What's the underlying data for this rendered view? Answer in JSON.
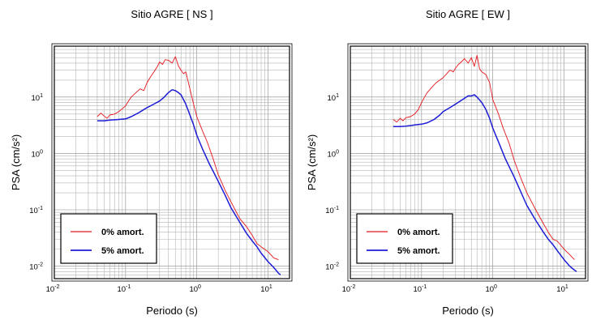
{
  "chart_data": [
    {
      "type": "line",
      "title": "Sitio AGRE [ NS ]",
      "xlabel": "Periodo (s)",
      "ylabel": "PSA (cm/s²)",
      "x_scale": "log",
      "y_scale": "log",
      "xlim": [
        0.01,
        20
      ],
      "ylim": [
        0.006,
        80
      ],
      "grid": true,
      "legend_position": "bottom-left",
      "x_ticks": [
        {
          "base": "10",
          "exp": "-2"
        },
        {
          "base": "10",
          "exp": "-1"
        },
        {
          "base": "10",
          "exp": "0"
        },
        {
          "base": "10",
          "exp": "1"
        }
      ],
      "y_ticks": [
        {
          "base": "10",
          "exp": "-2"
        },
        {
          "base": "10",
          "exp": "-1"
        },
        {
          "base": "10",
          "exp": "0"
        },
        {
          "base": "10",
          "exp": "1"
        }
      ],
      "series": [
        {
          "name": "0% amort.",
          "color": "#e8161c",
          "x": [
            0.04,
            0.045,
            0.05,
            0.055,
            0.06,
            0.07,
            0.08,
            0.09,
            0.1,
            0.11,
            0.12,
            0.14,
            0.16,
            0.18,
            0.2,
            0.22,
            0.25,
            0.28,
            0.3,
            0.33,
            0.36,
            0.4,
            0.45,
            0.5,
            0.55,
            0.6,
            0.65,
            0.7,
            0.8,
            0.9,
            1.0,
            1.2,
            1.4,
            1.7,
            2.0,
            2.5,
            3.0,
            4.0,
            5.0,
            6.0,
            7.0,
            8.0,
            10.0,
            12.0,
            14.0
          ],
          "values": [
            4.5,
            5.2,
            4.6,
            4.2,
            4.8,
            5.0,
            5.5,
            6.2,
            7.0,
            8.5,
            10.0,
            12.0,
            14.0,
            13.0,
            18.0,
            22.0,
            28.0,
            35.0,
            42.0,
            38.0,
            46.0,
            45.0,
            40.0,
            52.0,
            36.0,
            30.0,
            26.0,
            28.0,
            14.0,
            7.5,
            4.5,
            2.5,
            1.6,
            0.8,
            0.42,
            0.22,
            0.14,
            0.07,
            0.05,
            0.035,
            0.025,
            0.022,
            0.018,
            0.014,
            0.013
          ]
        },
        {
          "name": "5% amort.",
          "color": "#1c1cd6",
          "x": [
            0.04,
            0.05,
            0.06,
            0.08,
            0.1,
            0.12,
            0.15,
            0.18,
            0.2,
            0.25,
            0.3,
            0.35,
            0.4,
            0.45,
            0.5,
            0.55,
            0.6,
            0.7,
            0.8,
            0.9,
            1.0,
            1.2,
            1.5,
            2.0,
            2.5,
            3.0,
            4.0,
            5.0,
            6.0,
            7.0,
            8.0,
            10.0,
            12.0,
            14.0,
            15.0
          ],
          "values": [
            3.8,
            3.8,
            3.9,
            4.0,
            4.1,
            4.5,
            5.2,
            6.0,
            6.5,
            7.5,
            8.5,
            10.0,
            12.0,
            13.5,
            13.0,
            12.0,
            11.0,
            7.5,
            4.8,
            3.2,
            2.1,
            1.2,
            0.65,
            0.32,
            0.18,
            0.11,
            0.06,
            0.038,
            0.028,
            0.022,
            0.017,
            0.012,
            0.0095,
            0.0075,
            0.007
          ]
        }
      ]
    },
    {
      "type": "line",
      "title": "Sitio AGRE [ EW ]",
      "xlabel": "Periodo (s)",
      "ylabel": "PSA (cm/s²)",
      "x_scale": "log",
      "y_scale": "log",
      "xlim": [
        0.01,
        20
      ],
      "ylim": [
        0.006,
        80
      ],
      "grid": true,
      "legend_position": "bottom-left",
      "x_ticks": [
        {
          "base": "10",
          "exp": "-2"
        },
        {
          "base": "10",
          "exp": "-1"
        },
        {
          "base": "10",
          "exp": "0"
        },
        {
          "base": "10",
          "exp": "1"
        }
      ],
      "y_ticks": [
        {
          "base": "10",
          "exp": "-2"
        },
        {
          "base": "10",
          "exp": "-1"
        },
        {
          "base": "10",
          "exp": "0"
        },
        {
          "base": "10",
          "exp": "1"
        }
      ],
      "series": [
        {
          "name": "0% amort.",
          "color": "#e8161c",
          "x": [
            0.04,
            0.045,
            0.05,
            0.055,
            0.06,
            0.07,
            0.08,
            0.09,
            0.1,
            0.11,
            0.12,
            0.14,
            0.16,
            0.18,
            0.2,
            0.22,
            0.25,
            0.28,
            0.3,
            0.33,
            0.36,
            0.4,
            0.45,
            0.5,
            0.55,
            0.6,
            0.65,
            0.7,
            0.8,
            0.9,
            1.0,
            1.2,
            1.4,
            1.7,
            2.0,
            2.5,
            3.0,
            4.0,
            5.0,
            6.0,
            7.0,
            8.0,
            10.0,
            12.0,
            14.0
          ],
          "values": [
            4.0,
            3.6,
            4.2,
            3.8,
            4.3,
            4.5,
            5.0,
            6.0,
            8.0,
            10.0,
            12.0,
            15.0,
            18.0,
            20.0,
            22.0,
            25.0,
            30.0,
            28.0,
            33.0,
            38.0,
            42.0,
            48.0,
            40.0,
            50.0,
            35.0,
            55.0,
            32.0,
            28.0,
            25.0,
            18.0,
            9.0,
            5.0,
            2.8,
            1.5,
            0.75,
            0.35,
            0.2,
            0.1,
            0.06,
            0.04,
            0.03,
            0.028,
            0.02,
            0.016,
            0.013
          ]
        },
        {
          "name": "5% amort.",
          "color": "#1c1cd6",
          "x": [
            0.04,
            0.05,
            0.06,
            0.08,
            0.1,
            0.12,
            0.15,
            0.18,
            0.2,
            0.25,
            0.3,
            0.35,
            0.4,
            0.45,
            0.5,
            0.55,
            0.6,
            0.7,
            0.8,
            0.9,
            1.0,
            1.2,
            1.5,
            2.0,
            2.5,
            3.0,
            4.0,
            5.0,
            6.0,
            7.0,
            8.0,
            10.0,
            12.0,
            14.0,
            15.0
          ],
          "values": [
            3.0,
            3.0,
            3.05,
            3.2,
            3.3,
            3.5,
            4.0,
            4.8,
            5.5,
            6.5,
            7.5,
            8.5,
            9.5,
            10.5,
            10.5,
            11.0,
            10.0,
            8.0,
            6.0,
            4.2,
            2.8,
            1.6,
            0.8,
            0.38,
            0.2,
            0.12,
            0.065,
            0.042,
            0.03,
            0.024,
            0.019,
            0.013,
            0.01,
            0.0085,
            0.008
          ]
        }
      ]
    }
  ]
}
